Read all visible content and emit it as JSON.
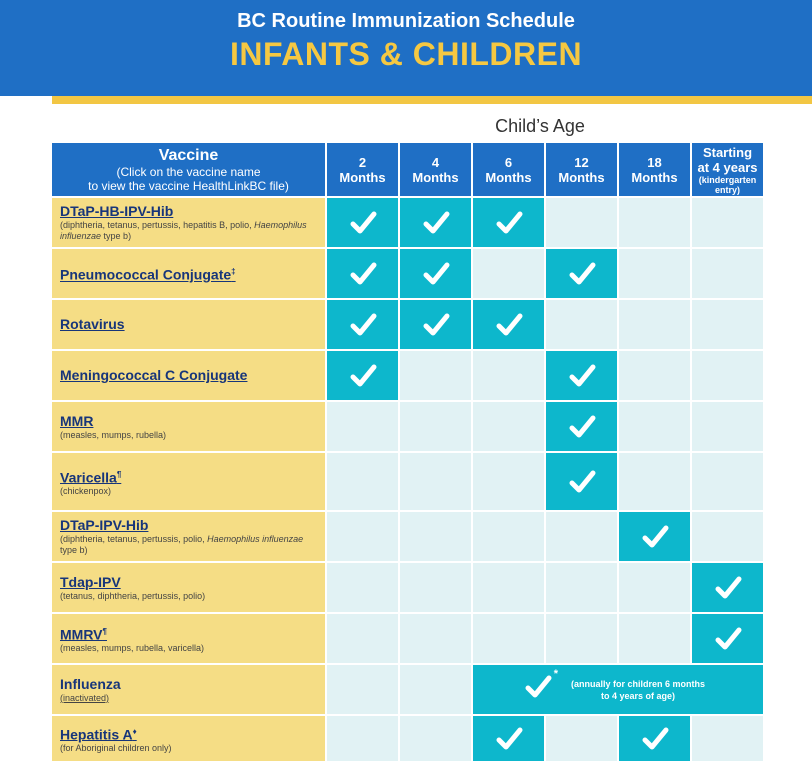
{
  "header": {
    "title": "BC Routine Immunization Schedule",
    "subtitle": "INFANTS & CHILDREN"
  },
  "age_label": "Child’s Age",
  "table": {
    "vaccine_header": {
      "title": "Vaccine",
      "line1": "(Click on the vaccine name",
      "line2": "to view the vaccine HealthLinkBC file)"
    },
    "age_columns": [
      {
        "line1": "2",
        "line2": "Months"
      },
      {
        "line1": "4",
        "line2": "Months"
      },
      {
        "line1": "6",
        "line2": "Months"
      },
      {
        "line1": "12",
        "line2": "Months"
      },
      {
        "line1": "18",
        "line2": "Months"
      },
      {
        "line1": "Starting",
        "line2": "at 4 years",
        "line3": "(kindergarten",
        "line4": "entry)"
      }
    ],
    "rows": [
      {
        "name": "DTaP-HB-IPV-Hib",
        "mark": "",
        "desc": "(diphtheria, tetanus, pertussis, hepatitis B, polio, ",
        "desc_italic": "Haemophilus influenzae",
        "desc_tail": " type b)",
        "given": [
          true,
          true,
          true,
          false,
          false,
          false
        ]
      },
      {
        "name": "Pneumococcal Conjugate",
        "mark": "‡",
        "desc": "",
        "given": [
          true,
          true,
          false,
          true,
          false,
          false
        ]
      },
      {
        "name": "Rotavirus",
        "mark": "",
        "desc": "",
        "given": [
          true,
          true,
          true,
          false,
          false,
          false
        ]
      },
      {
        "name": "Meningococcal C Conjugate",
        "mark": "",
        "desc": "",
        "given": [
          true,
          false,
          false,
          true,
          false,
          false
        ]
      },
      {
        "name": "MMR",
        "mark": "",
        "desc": "(measles, mumps, rubella)",
        "given": [
          false,
          false,
          false,
          true,
          false,
          false
        ]
      },
      {
        "name": "Varicella",
        "mark": "¶",
        "desc": "(chickenpox)",
        "given": [
          false,
          false,
          false,
          true,
          false,
          false
        ]
      },
      {
        "name": "DTaP-IPV-Hib",
        "mark": "",
        "desc": "(diphtheria, tetanus, pertussis, polio, ",
        "desc_italic": "Haemophilus influenzae",
        "desc_tail": " type b)",
        "given": [
          false,
          false,
          false,
          false,
          true,
          false
        ]
      },
      {
        "name": "Tdap-IPV",
        "mark": "",
        "desc": "(tetanus, diphtheria, pertussis, polio)",
        "given": [
          false,
          false,
          false,
          false,
          false,
          true
        ]
      },
      {
        "name": "MMRV",
        "mark": "¶",
        "desc": "(measles, mumps, rubella, varicella)",
        "given": [
          false,
          false,
          false,
          false,
          false,
          true
        ]
      }
    ],
    "influenza": {
      "name": "Influenza",
      "desc": "(inactivated)",
      "mark": "*",
      "note_line1": "(annually for children 6 months",
      "note_line2": "to 4 years of age)"
    },
    "hepatitis_a": {
      "name": "Hepatitis A",
      "mark": "♦",
      "desc": "(for Aboriginal children only)",
      "given": [
        false,
        false,
        true,
        false,
        true,
        false
      ]
    }
  },
  "colors": {
    "banner_blue": "#1f6fc5",
    "banner_gold": "#f2c643",
    "vaccine_yellow": "#f5dd85",
    "check_teal": "#0db7cc",
    "empty_cell": "#e1f2f4",
    "vaccine_name": "#17357a"
  },
  "icon": "checkmark-icon"
}
